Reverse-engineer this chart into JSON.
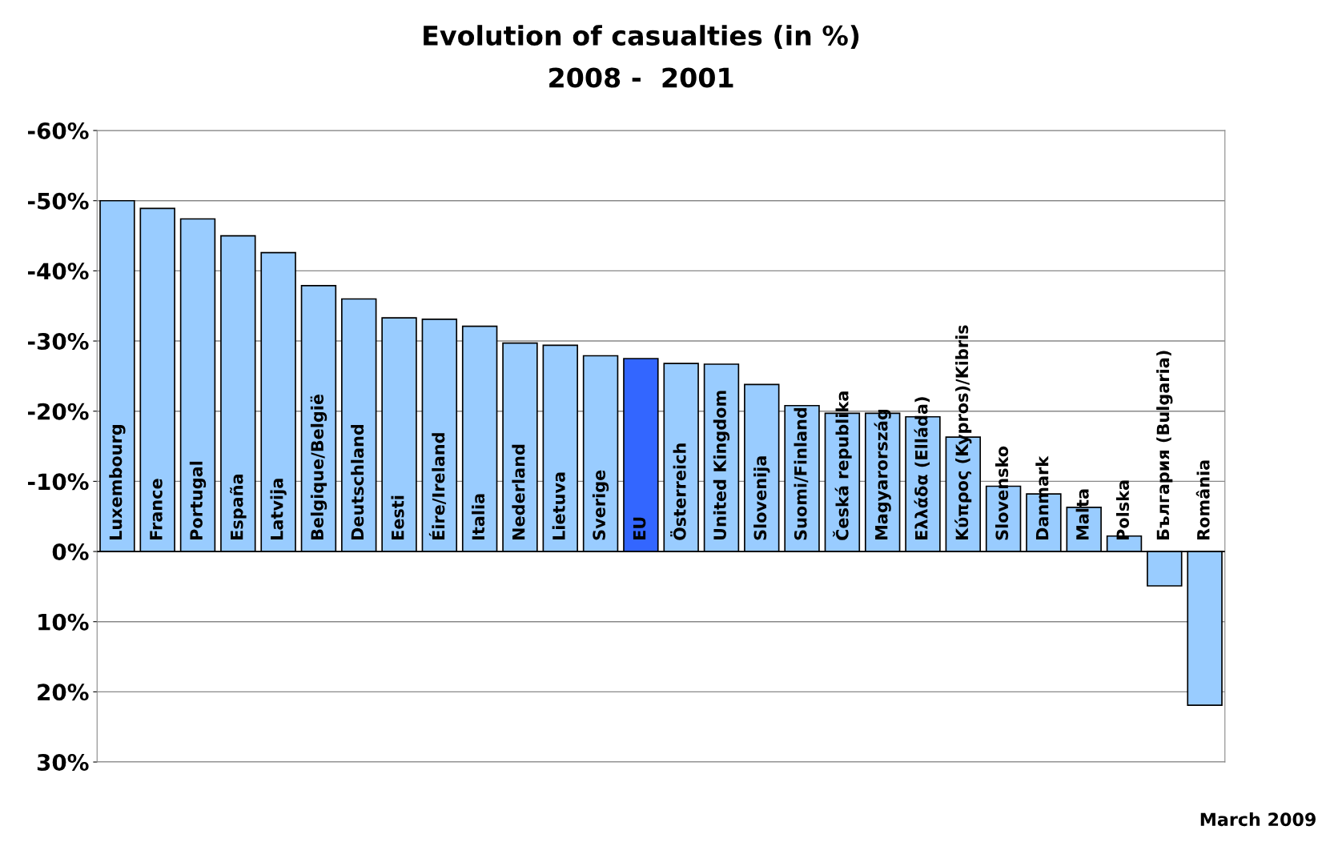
{
  "chart_data": {
    "type": "bar",
    "title": "Evolution of casualties (in %)",
    "subtitle": "2008 -  2001",
    "categories": [
      "Luxembourg",
      "France",
      "Portugal",
      "España",
      "Latvija",
      "Belgique/België",
      "Deutschland",
      "Eesti",
      "Éire/Ireland",
      "Italia",
      "Nederland",
      "Lietuva",
      "Sverige",
      "EU",
      "Österreich",
      "United Kingdom",
      "Slovenija",
      "Suomi/Finland",
      "Česká republika",
      "Magyarország",
      "Ελλάδα (Elláda)",
      "Κύπρος (Kypros)/Kibris",
      "Slovensko",
      "Danmark",
      "Malta",
      "Polska",
      "България (Bulgaria)",
      "România"
    ],
    "values": [
      -50,
      -48.9,
      -47.4,
      -45,
      -42.6,
      -37.9,
      -36,
      -33.3,
      -33.1,
      -32.1,
      -29.7,
      -29.4,
      -27.9,
      -27.5,
      -26.8,
      -26.7,
      -23.8,
      -20.8,
      -19.7,
      -19.7,
      -19.2,
      -16.3,
      -9.3,
      -8.2,
      -6.3,
      -2.2,
      4.9,
      21.9
    ],
    "colors": [
      "#99ccff",
      "#99ccff",
      "#99ccff",
      "#99ccff",
      "#99ccff",
      "#99ccff",
      "#99ccff",
      "#99ccff",
      "#99ccff",
      "#99ccff",
      "#99ccff",
      "#99ccff",
      "#99ccff",
      "#3366ff",
      "#99ccff",
      "#99ccff",
      "#99ccff",
      "#99ccff",
      "#99ccff",
      "#99ccff",
      "#99ccff",
      "#99ccff",
      "#99ccff",
      "#99ccff",
      "#99ccff",
      "#99ccff",
      "#99ccff",
      "#99ccff"
    ],
    "ylim": [
      30,
      -60
    ],
    "yticks": [
      {
        "value": -60,
        "label": "-60%"
      },
      {
        "value": -50,
        "label": "-50%"
      },
      {
        "value": -40,
        "label": "-40%"
      },
      {
        "value": -30,
        "label": "-30%"
      },
      {
        "value": -20,
        "label": "-20%"
      },
      {
        "value": -10,
        "label": "-10%"
      },
      {
        "value": 0,
        "label": "0%"
      },
      {
        "value": 10,
        "label": "10%"
      },
      {
        "value": 20,
        "label": "20%"
      },
      {
        "value": 30,
        "label": "30%"
      }
    ],
    "grid": "y",
    "legend": false,
    "annotations": [
      "March 2009"
    ]
  }
}
